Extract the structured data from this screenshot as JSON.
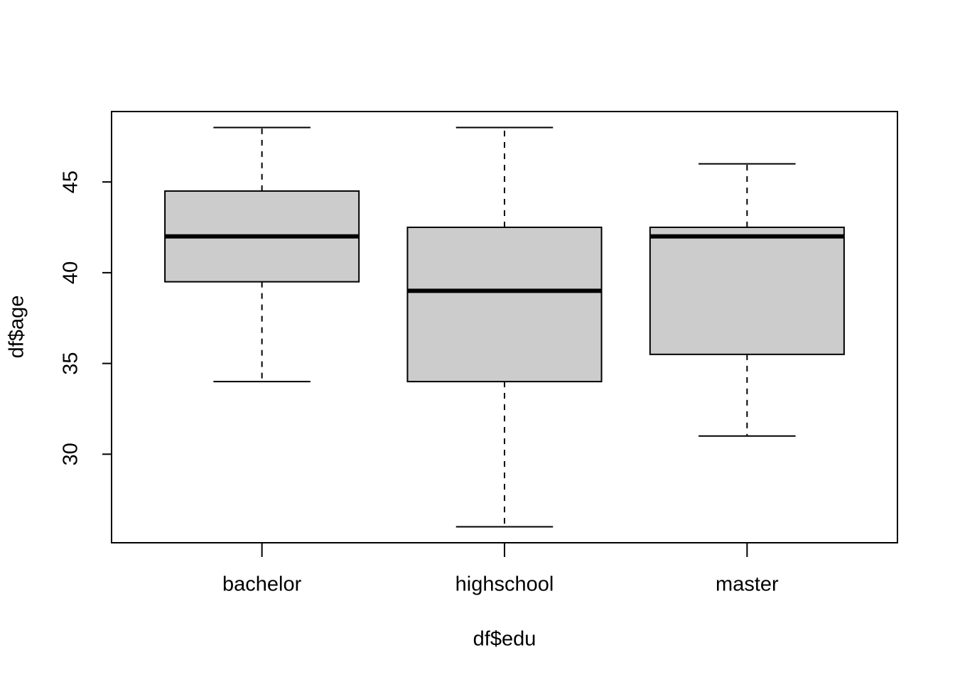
{
  "chart_data": {
    "type": "boxplot",
    "x_label": "df$edu",
    "y_label": "df$age",
    "categories": [
      "bachelor",
      "highschool",
      "master"
    ],
    "min": [
      34,
      26,
      31
    ],
    "q1": [
      39.5,
      34,
      35.5
    ],
    "median": [
      42,
      39,
      42
    ],
    "q3": [
      44.5,
      42.5,
      42.5
    ],
    "max": [
      48,
      48,
      46
    ],
    "color": "#cccccc",
    "ylim": [
      25.12,
      48.88
    ],
    "yticks": [
      30,
      35,
      40,
      45
    ]
  }
}
